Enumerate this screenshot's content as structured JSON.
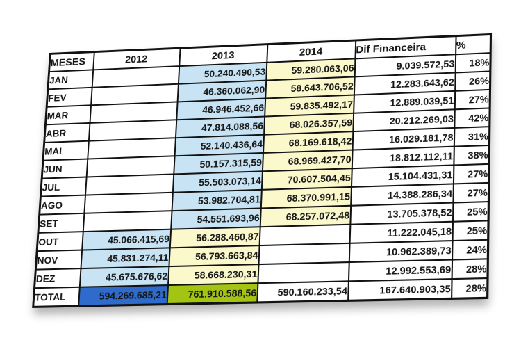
{
  "table": {
    "columns": [
      {
        "key": "month",
        "label": "MESES"
      },
      {
        "key": "y2012",
        "label": "2012"
      },
      {
        "key": "y2013",
        "label": "2013"
      },
      {
        "key": "y2014",
        "label": "2014"
      },
      {
        "key": "dif",
        "label": "Dif Financeira"
      },
      {
        "key": "pct",
        "label": "%"
      }
    ],
    "rows": [
      {
        "month": "JAN",
        "values": {
          "y2012": "",
          "y2013": "50.240.490,53",
          "y2014": "59.280.063,06",
          "dif": "9.039.572,53",
          "pct": "18%"
        },
        "highlights": {
          "y2013": "blue",
          "y2014": "yellow"
        }
      },
      {
        "month": "FEV",
        "values": {
          "y2012": "",
          "y2013": "46.360.062,90",
          "y2014": "58.643.706,52",
          "dif": "12.283.643,62",
          "pct": "26%"
        },
        "highlights": {
          "y2013": "blue",
          "y2014": "yellow"
        }
      },
      {
        "month": "MAR",
        "values": {
          "y2012": "",
          "y2013": "46.946.452,66",
          "y2014": "59.835.492,17",
          "dif": "12.889.039,51",
          "pct": "27%"
        },
        "highlights": {
          "y2013": "blue",
          "y2014": "yellow"
        }
      },
      {
        "month": "ABR",
        "values": {
          "y2012": "",
          "y2013": "47.814.088,56",
          "y2014": "68.026.357,59",
          "dif": "20.212.269,03",
          "pct": "42%"
        },
        "highlights": {
          "y2013": "blue",
          "y2014": "yellow"
        }
      },
      {
        "month": "MAI",
        "values": {
          "y2012": "",
          "y2013": "52.140.436,64",
          "y2014": "68.169.618,42",
          "dif": "16.029.181,78",
          "pct": "31%"
        },
        "highlights": {
          "y2013": "blue",
          "y2014": "yellow"
        }
      },
      {
        "month": "JUN",
        "values": {
          "y2012": "",
          "y2013": "50.157.315,59",
          "y2014": "68.969.427,70",
          "dif": "18.812.112,11",
          "pct": "38%"
        },
        "highlights": {
          "y2013": "blue",
          "y2014": "yellow"
        }
      },
      {
        "month": "JUL",
        "values": {
          "y2012": "",
          "y2013": "55.503.073,14",
          "y2014": "70.607.504,45",
          "dif": "15.104.431,31",
          "pct": "27%"
        },
        "highlights": {
          "y2013": "blue",
          "y2014": "yellow"
        }
      },
      {
        "month": "AGO",
        "values": {
          "y2012": "",
          "y2013": "53.982.704,81",
          "y2014": "68.370.991,15",
          "dif": "14.388.286,34",
          "pct": "27%"
        },
        "highlights": {
          "y2013": "blue",
          "y2014": "yellow"
        }
      },
      {
        "month": "SET",
        "values": {
          "y2012": "",
          "y2013": "54.551.693,96",
          "y2014": "68.257.072,48",
          "dif": "13.705.378,52",
          "pct": "25%"
        },
        "highlights": {
          "y2013": "blue",
          "y2014": "yellow"
        }
      },
      {
        "month": "OUT",
        "values": {
          "y2012": "45.066.415,69",
          "y2013": "56.288.460,87",
          "y2014": "",
          "dif": "11.222.045,18",
          "pct": "25%"
        },
        "highlights": {
          "y2012": "blue",
          "y2013": "yellow"
        }
      },
      {
        "month": "NOV",
        "values": {
          "y2012": "45.831.274,11",
          "y2013": "56.793.663,84",
          "y2014": "",
          "dif": "10.962.389,73",
          "pct": "24%"
        },
        "highlights": {
          "y2012": "blue",
          "y2013": "yellow"
        }
      },
      {
        "month": "DEZ",
        "values": {
          "y2012": "45.675.676,62",
          "y2013": "58.668.230,31",
          "y2014": "",
          "dif": "12.992.553,69",
          "pct": "28%"
        },
        "highlights": {
          "y2012": "blue",
          "y2013": "yellow"
        }
      },
      {
        "month": "TOTAL",
        "values": {
          "y2012": "594.269.685,21",
          "y2013": "761.910.588,56",
          "y2014": "590.160.233,54",
          "dif": "167.640.903,35",
          "pct": "28%"
        },
        "highlights": {
          "y2012": "tblue",
          "y2013": "tgreen"
        }
      }
    ]
  },
  "colors": {
    "light_blue": "#c8e4f4",
    "light_yellow": "#fbf8cc",
    "total_blue": "#2f6bcb",
    "total_green": "#a4c414",
    "grid": "#121212",
    "text": "#151515",
    "total_text": "#ffffff"
  }
}
